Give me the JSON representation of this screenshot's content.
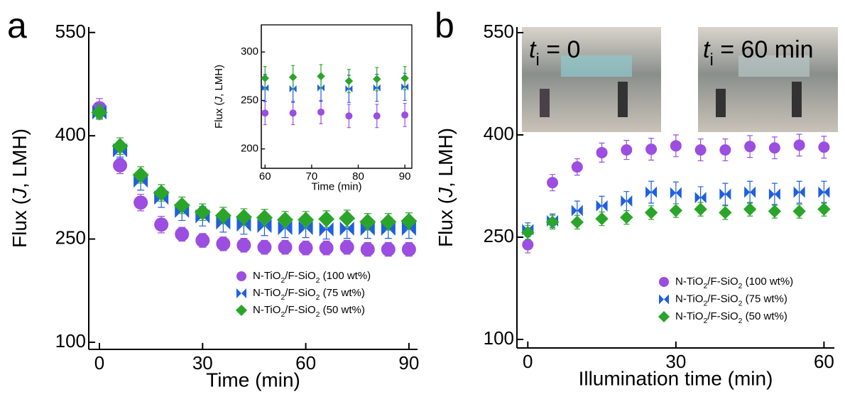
{
  "chart_data": [
    {
      "type": "scatter",
      "panel_label": "a",
      "xlabel": "Time (min)",
      "ylabel": "Flux (J, LMH)",
      "xlim": [
        -3.1,
        92.5
      ],
      "ylim": [
        89.7,
        558
      ],
      "xticks": [
        0,
        30,
        60,
        90
      ],
      "yticks": [
        100,
        250,
        400,
        550
      ],
      "legend": "lower right",
      "x": [
        0,
        6,
        12,
        18,
        24,
        30,
        36,
        42,
        48,
        54,
        60,
        66,
        72,
        78,
        84,
        90
      ],
      "series": [
        {
          "name": "N-TiO2/F-SiO2 (100 wt%)",
          "color": "#9b4ee0",
          "marker": "circle",
          "values": [
            440,
            357,
            303,
            271,
            257,
            248,
            243,
            241,
            238,
            238,
            237,
            237,
            238,
            235,
            235,
            235
          ],
          "errors": [
            14,
            12,
            12,
            12,
            10,
            10,
            10,
            10,
            10,
            10,
            10,
            10,
            10,
            10,
            10,
            10
          ]
        },
        {
          "name": "N-TiO2/F-SiO2 (75 wt%)",
          "color": "#1f5fe0",
          "marker": "bowtie",
          "values": [
            434,
            379,
            335,
            310,
            291,
            283,
            274,
            271,
            269,
            266,
            266,
            264,
            265,
            265,
            265,
            265
          ],
          "errors": [
            10,
            12,
            14,
            14,
            14,
            14,
            14,
            14,
            14,
            14,
            14,
            14,
            14,
            14,
            14,
            14
          ]
        },
        {
          "name": "N-TiO2/F-SiO2 (50 wt%)",
          "color": "#2aa52a",
          "marker": "diamond",
          "values": [
            434,
            385,
            343,
            317,
            299,
            289,
            284,
            282,
            281,
            278,
            278,
            279,
            280,
            275,
            275,
            276
          ],
          "errors": [
            10,
            12,
            12,
            12,
            12,
            12,
            12,
            12,
            12,
            12,
            12,
            12,
            12,
            12,
            12,
            12
          ]
        }
      ]
    },
    {
      "type": "scatter",
      "xlabel": "Time (min)",
      "ylabel": "Flux (J, LMH)",
      "xlim": [
        59.2,
        91.5
      ],
      "ylim": [
        180,
        328
      ],
      "xticks": [
        60,
        70,
        80,
        90
      ],
      "yticks": [
        200,
        250,
        300
      ],
      "legend": false,
      "frame": true,
      "x": [
        60,
        66,
        72,
        78,
        84,
        90
      ],
      "series": [
        {
          "name": "N-TiO2/F-SiO2 (100 wt%)",
          "color": "#9b4ee0",
          "marker": "circle",
          "values": [
            237,
            237,
            238,
            234,
            234,
            235
          ],
          "errors": [
            12,
            12,
            12,
            12,
            12,
            12
          ]
        },
        {
          "name": "N-TiO2/F-SiO2 (75 wt%)",
          "color": "#1f5fe0",
          "marker": "bowtie",
          "values": [
            263,
            262,
            263,
            262,
            263,
            264
          ],
          "errors": [
            14,
            14,
            14,
            14,
            14,
            14
          ]
        },
        {
          "name": "N-TiO2/F-SiO2 (50 wt%)",
          "color": "#2aa52a",
          "marker": "diamond",
          "values": [
            273,
            274,
            275,
            270,
            272,
            273
          ],
          "errors": [
            12,
            12,
            12,
            12,
            12,
            12
          ]
        }
      ]
    },
    {
      "type": "scatter",
      "panel_label": "b",
      "xlabel": "Illumination time (min)",
      "ylabel": "Flux (J, LMH)",
      "xlim": [
        -2.2,
        62.1
      ],
      "ylim": [
        87.5,
        558.3
      ],
      "xticks": [
        0,
        30,
        60
      ],
      "yticks": [
        100,
        250,
        400,
        550
      ],
      "legend": "lower right",
      "annotations": [
        "ti = 0",
        "ti = 60 min"
      ],
      "x": [
        0,
        5,
        10,
        15,
        20,
        25,
        30,
        35,
        40,
        45,
        50,
        55,
        60
      ],
      "series": [
        {
          "name": "N-TiO2/F-SiO2 (100 wt%)",
          "color": "#9b4ee0",
          "marker": "circle",
          "values": [
            239,
            330,
            353,
            374,
            378,
            379,
            384,
            378,
            378,
            383,
            381,
            385,
            382
          ],
          "errors": [
            12,
            12,
            12,
            14,
            14,
            16,
            16,
            16,
            16,
            16,
            16,
            16,
            16
          ]
        },
        {
          "name": "N-TiO2/F-SiO2 (75 wt%)",
          "color": "#1f5fe0",
          "marker": "bowtie",
          "values": [
            261,
            274,
            289,
            296,
            303,
            316,
            315,
            308,
            313,
            316,
            313,
            316,
            316
          ],
          "errors": [
            10,
            10,
            14,
            14,
            14,
            16,
            16,
            16,
            16,
            16,
            16,
            16,
            16
          ]
        },
        {
          "name": "N-TiO2/F-SiO2 (50 wt%)",
          "color": "#2aa52a",
          "marker": "diamond",
          "values": [
            257,
            272,
            272,
            277,
            279,
            286,
            289,
            291,
            286,
            291,
            288,
            288,
            291
          ],
          "errors": [
            10,
            10,
            10,
            10,
            10,
            10,
            10,
            10,
            10,
            10,
            10,
            10,
            10
          ]
        }
      ]
    }
  ]
}
